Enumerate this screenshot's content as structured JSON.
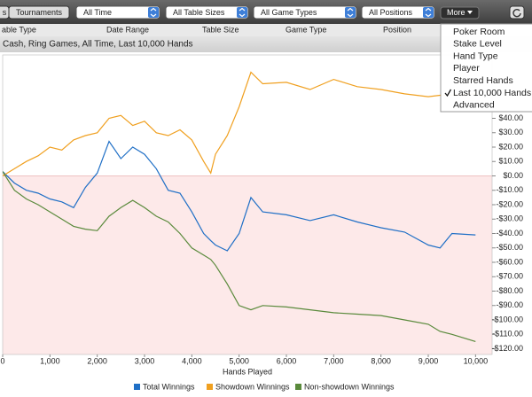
{
  "toolbar": {
    "tabs": [
      "s",
      "Tournaments"
    ],
    "filters": [
      "All Time",
      "All Table Sizes",
      "All Game Types",
      "All Positions"
    ],
    "more": "More"
  },
  "headers": [
    "able Type",
    "Date Range",
    "Table Size",
    "Game Type",
    "Position"
  ],
  "filter_label": "Cash, Ring Games, All Time, Last 10,000 Hands",
  "menu": [
    {
      "label": "Poker Room"
    },
    {
      "label": "Stake Level"
    },
    {
      "label": "Hand Type"
    },
    {
      "label": "Player"
    },
    {
      "label": "Starred Hands"
    },
    {
      "label": "Last 10,000 Hands",
      "checked": true
    },
    {
      "label": "Advanced"
    }
  ],
  "chart_data": {
    "type": "line",
    "x_label": "Hands Played",
    "x": [
      0,
      250,
      500,
      750,
      1000,
      1250,
      1500,
      1750,
      2000,
      2250,
      2500,
      2750,
      3000,
      3250,
      3500,
      3750,
      4000,
      4250,
      4400,
      4500,
      4750,
      5000,
      5250,
      5500,
      6000,
      6500,
      7000,
      7500,
      8000,
      8500,
      9000,
      9250,
      9500,
      10000
    ],
    "series": [
      {
        "name": "Total Winnings",
        "color": "#1f6fc6",
        "values": [
          3,
          -5,
          -10,
          -12,
          -16,
          -18,
          -22,
          -8,
          2,
          24,
          12,
          20,
          15,
          5,
          -10,
          -12,
          -25,
          -40,
          -45,
          -48,
          -52,
          -40,
          -15,
          -25,
          -27,
          -31,
          -27,
          -32,
          -36,
          -39,
          -48,
          -50,
          -40,
          -41
        ]
      },
      {
        "name": "Showdown Winnings",
        "color": "#f0a020",
        "values": [
          0,
          5,
          10,
          14,
          20,
          18,
          25,
          28,
          30,
          40,
          42,
          35,
          38,
          30,
          28,
          32,
          25,
          10,
          2,
          15,
          28,
          48,
          72,
          64,
          65,
          60,
          67,
          62,
          60,
          57,
          55,
          56,
          56,
          57
        ]
      },
      {
        "name": "Non-showdown Winnings",
        "color": "#5a8a3c",
        "values": [
          3,
          -10,
          -16,
          -20,
          -25,
          -30,
          -35,
          -37,
          -38,
          -28,
          -22,
          -17,
          -22,
          -28,
          -32,
          -40,
          -50,
          -55,
          -58,
          -62,
          -75,
          -90,
          -93,
          -90,
          -91,
          -93,
          -95,
          -96,
          -97,
          -100,
          -103,
          -108,
          -110,
          -115
        ]
      }
    ],
    "xlim": [
      0,
      10350
    ],
    "ylim": [
      -124,
      84
    ],
    "xticks": [
      0,
      {
        "value": 1000,
        "label": "1,000"
      },
      {
        "value": 2000,
        "label": "2,000"
      },
      {
        "value": 3000,
        "label": "3,000"
      },
      {
        "value": 4000,
        "label": "4,000"
      },
      {
        "value": 5000,
        "label": "5,000"
      },
      {
        "value": 6000,
        "label": "6,000"
      },
      {
        "value": 7000,
        "label": "7,000"
      },
      {
        "value": 8000,
        "label": "8,000"
      },
      {
        "value": 9000,
        "label": "9,000"
      },
      {
        "value": 10000,
        "label": "10,000"
      }
    ],
    "yticks": [
      {
        "value": -120,
        "label": "-$120.00"
      },
      {
        "value": -110,
        "label": "-$110.00"
      },
      {
        "value": -100,
        "label": "-$100.00"
      },
      {
        "value": -90,
        "label": "-$90.00"
      },
      {
        "value": -80,
        "label": "-$80.00"
      },
      {
        "value": -70,
        "label": "-$70.00"
      },
      {
        "value": -60,
        "label": "-$60.00"
      },
      {
        "value": -50,
        "label": "-$50.00"
      },
      {
        "value": -40,
        "label": "-$40.00"
      },
      {
        "value": -30,
        "label": "-$30.00"
      },
      {
        "value": -20,
        "label": "-$20.00"
      },
      {
        "value": -10,
        "label": "-$10.00"
      },
      {
        "value": 0,
        "label": "$0.00"
      },
      {
        "value": 10,
        "label": "$10.00"
      },
      {
        "value": 20,
        "label": "$20.00"
      },
      {
        "value": 30,
        "label": "$30.00"
      },
      {
        "value": 40,
        "label": "$40.00"
      }
    ],
    "negative_shading": "#fde9e9",
    "legend": "bottom"
  }
}
